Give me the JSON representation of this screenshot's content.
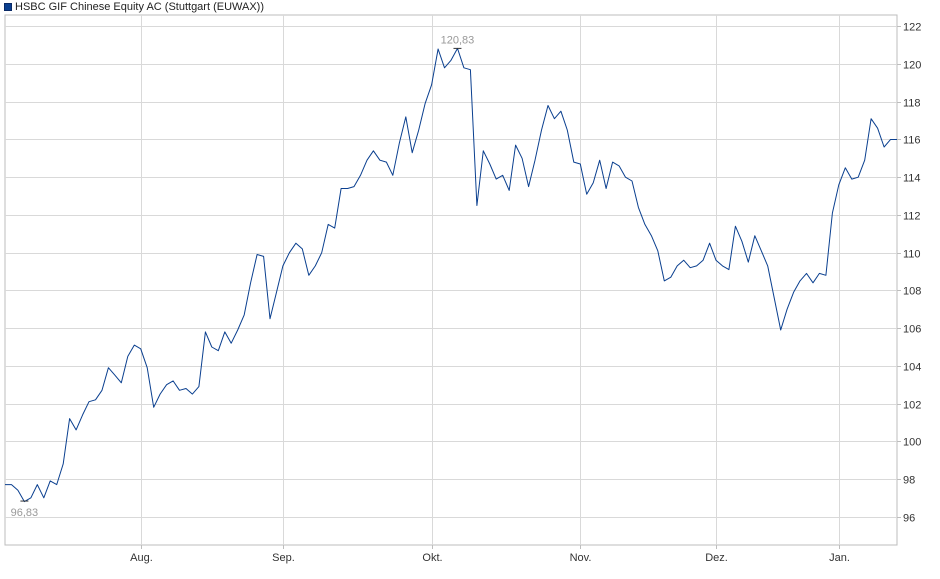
{
  "chart_data": {
    "type": "line",
    "legend": {
      "label": "HSBC GIF Chinese Equity AC (Stuttgart (EUWAX))",
      "color": "#0a3f8f",
      "placement": "top-left"
    },
    "series": [
      {
        "name": "HSBC GIF Chinese Equity AC (Stuttgart (EUWAX))",
        "color": "#0a3f8f",
        "values": [
          97.7,
          97.7,
          97.4,
          96.8,
          97.0,
          97.7,
          97.0,
          97.9,
          97.7,
          98.8,
          101.2,
          100.6,
          101.4,
          102.1,
          102.2,
          102.7,
          103.9,
          103.5,
          103.1,
          104.5,
          105.1,
          104.9,
          103.9,
          101.8,
          102.5,
          103.0,
          103.2,
          102.7,
          102.8,
          102.5,
          102.9,
          105.8,
          105.0,
          104.8,
          105.8,
          105.2,
          105.9,
          106.7,
          108.4,
          109.9,
          109.8,
          106.5,
          107.9,
          109.3,
          110.0,
          110.5,
          110.2,
          108.8,
          109.3,
          110.0,
          111.5,
          111.3,
          113.4,
          113.4,
          113.5,
          114.1,
          114.9,
          115.4,
          114.9,
          114.8,
          114.1,
          115.8,
          117.2,
          115.3,
          116.5,
          117.9,
          118.9,
          120.8,
          119.8,
          120.2,
          120.83,
          119.8,
          119.7,
          112.5,
          115.4,
          114.7,
          113.9,
          114.1,
          113.3,
          115.7,
          115.0,
          113.5,
          114.9,
          116.5,
          117.8,
          117.1,
          117.5,
          116.5,
          114.8,
          114.7,
          113.1,
          113.7,
          114.9,
          113.4,
          114.8,
          114.6,
          114.0,
          113.8,
          112.4,
          111.5,
          110.9,
          110.1,
          108.5,
          108.7,
          109.3,
          109.6,
          109.2,
          109.3,
          109.6,
          110.5,
          109.6,
          109.3,
          109.1,
          111.4,
          110.6,
          109.5,
          110.9,
          110.1,
          109.3,
          107.6,
          105.9,
          107.0,
          107.9,
          108.5,
          108.9,
          108.4,
          108.9,
          108.8,
          112.1,
          113.6,
          114.5,
          113.9,
          114.0,
          114.9,
          117.1,
          116.6,
          115.6,
          116.0,
          116.0
        ]
      }
    ],
    "x_ticks": [
      {
        "label": "Aug.",
        "index": 21
      },
      {
        "label": "Sep.",
        "index": 43
      },
      {
        "label": "Okt.",
        "index": 66
      },
      {
        "label": "Nov.",
        "index": 89
      },
      {
        "label": "Dez.",
        "index": 110
      },
      {
        "label": "Jan.",
        "index": 129
      }
    ],
    "y_ticks": [
      96,
      98,
      100,
      102,
      104,
      106,
      108,
      110,
      112,
      114,
      116,
      118,
      120,
      122
    ],
    "ylim": [
      94.5,
      122.6
    ],
    "grid": true,
    "annotations": [
      {
        "label": "120,83",
        "index": 70,
        "value": 120.83,
        "position": "above"
      },
      {
        "label": "96,83",
        "index": 3,
        "value": 96.83,
        "position": "below"
      }
    ],
    "colors": {
      "line": "#0a3f8f",
      "grid": "#d9d9d9",
      "axis": "#bdbdbd",
      "annotation": "#999999"
    }
  }
}
